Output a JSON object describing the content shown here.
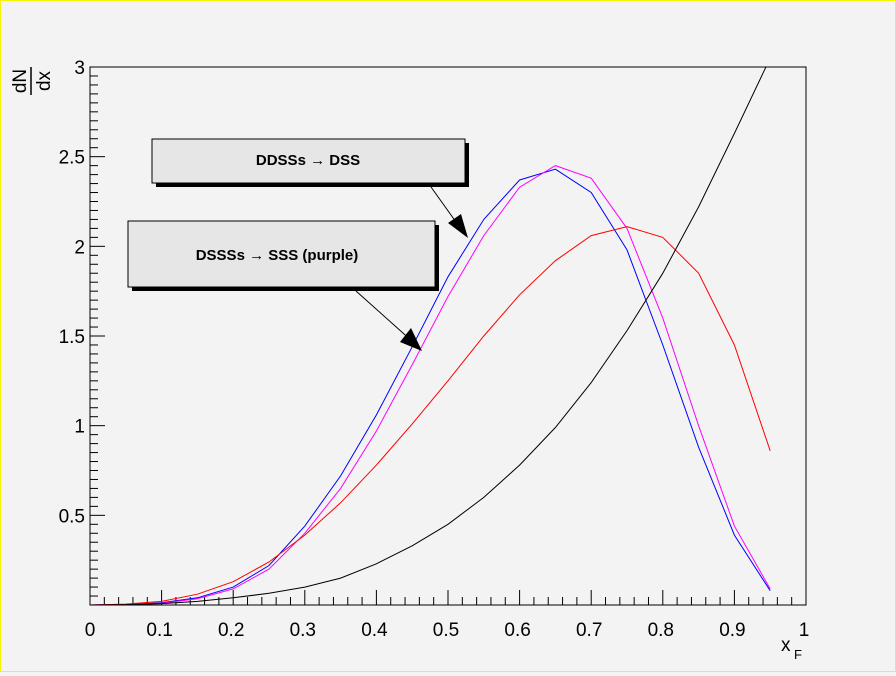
{
  "chart_data": {
    "type": "line",
    "title": "",
    "xlabel": "x",
    "xlabel_sub": "F",
    "ylabel_num": "dN",
    "ylabel_den": "dx",
    "xlim": [
      0,
      1
    ],
    "ylim": [
      0,
      3
    ],
    "xticks": [
      0,
      0.1,
      0.2,
      0.3,
      0.4,
      0.5,
      0.6,
      0.7,
      0.8,
      0.9,
      1
    ],
    "xtick_labels": [
      "0",
      "0.1",
      "0.2",
      "0.3",
      "0.4",
      "0.5",
      "0.6",
      "0.7",
      "0.8",
      "0.9",
      "1"
    ],
    "yticks": [
      0.5,
      1,
      1.5,
      2,
      2.5,
      3
    ],
    "ytick_labels": [
      "0.5",
      "1",
      "1.5",
      "2",
      "2.5",
      "3"
    ],
    "grid": false,
    "series": [
      {
        "color": "#0000ff",
        "x": [
          0,
          0.05,
          0.1,
          0.15,
          0.2,
          0.25,
          0.3,
          0.35,
          0.4,
          0.45,
          0.5,
          0.55,
          0.6,
          0.65,
          0.7,
          0.75,
          0.8,
          0.85,
          0.9,
          0.95
        ],
        "y": [
          0,
          0.003,
          0.012,
          0.04,
          0.1,
          0.22,
          0.44,
          0.72,
          1.06,
          1.44,
          1.83,
          2.15,
          2.37,
          2.43,
          2.3,
          1.98,
          1.45,
          0.88,
          0.39,
          0.08
        ]
      },
      {
        "color": "#ff00ff",
        "x": [
          0,
          0.05,
          0.1,
          0.15,
          0.2,
          0.25,
          0.3,
          0.35,
          0.4,
          0.45,
          0.5,
          0.55,
          0.6,
          0.65,
          0.7,
          0.75,
          0.8,
          0.85,
          0.9,
          0.95
        ],
        "y": [
          0,
          0.003,
          0.01,
          0.035,
          0.09,
          0.2,
          0.4,
          0.65,
          0.97,
          1.34,
          1.72,
          2.06,
          2.33,
          2.45,
          2.38,
          2.1,
          1.6,
          1.0,
          0.44,
          0.09
        ]
      },
      {
        "color": "#ff0000",
        "x": [
          0,
          0.05,
          0.1,
          0.15,
          0.2,
          0.25,
          0.3,
          0.35,
          0.4,
          0.45,
          0.5,
          0.55,
          0.6,
          0.65,
          0.7,
          0.75,
          0.8,
          0.85,
          0.9,
          0.95
        ],
        "y": [
          0,
          0.005,
          0.02,
          0.06,
          0.13,
          0.24,
          0.39,
          0.57,
          0.78,
          1.01,
          1.25,
          1.5,
          1.73,
          1.92,
          2.06,
          2.11,
          2.05,
          1.85,
          1.45,
          0.86
        ]
      },
      {
        "color": "#000000",
        "x": [
          0,
          0.05,
          0.1,
          0.15,
          0.2,
          0.25,
          0.3,
          0.35,
          0.4,
          0.45,
          0.5,
          0.55,
          0.6,
          0.65,
          0.7,
          0.75,
          0.8,
          0.85,
          0.9,
          0.95,
          0.96
        ],
        "y": [
          0,
          0.002,
          0.008,
          0.02,
          0.04,
          0.065,
          0.1,
          0.15,
          0.23,
          0.33,
          0.45,
          0.6,
          0.78,
          0.99,
          1.24,
          1.53,
          1.85,
          2.22,
          2.63,
          3.05,
          3.0
        ]
      }
    ],
    "annotations": [
      {
        "text": "DDSSs → DSS"
      },
      {
        "text": "DSSSs → SSS (purple)"
      }
    ]
  }
}
